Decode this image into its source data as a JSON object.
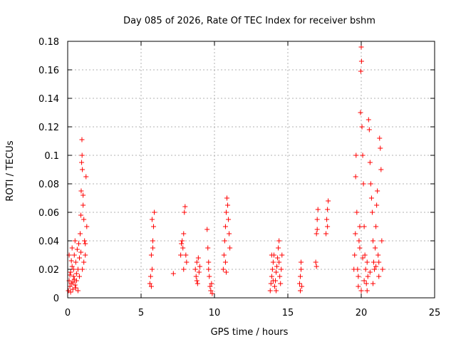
{
  "chart_data": {
    "type": "scatter",
    "title": "Day 085 of 2026, Rate Of TEC Index for receiver bshm",
    "xlabel": "GPS time / hours",
    "ylabel": "ROTI / TECUs",
    "xlim": [
      0,
      25
    ],
    "ylim": [
      0,
      0.18
    ],
    "x_ticks": [
      "0",
      "5",
      "10",
      "15",
      "20",
      "25"
    ],
    "y_ticks": [
      "0",
      "0.02",
      "0.04",
      "0.06",
      "0.08",
      "0.1",
      "0.12",
      "0.14",
      "0.16",
      "0.18"
    ],
    "grid": true,
    "marker": "+",
    "color": "#ff0000",
    "series": [
      {
        "points": [
          [
            0.05,
            0.005
          ],
          [
            0.1,
            0.012
          ],
          [
            0.15,
            0.008
          ],
          [
            0.2,
            0.018
          ],
          [
            0.25,
            0.01
          ],
          [
            0.3,
            0.022
          ],
          [
            0.35,
            0.006
          ],
          [
            0.4,
            0.015
          ],
          [
            0.45,
            0.03
          ],
          [
            0.5,
            0.009
          ],
          [
            0.55,
            0.025
          ],
          [
            0.6,
            0.012
          ],
          [
            0.65,
            0.034
          ],
          [
            0.7,
            0.02
          ],
          [
            0.75,
            0.038
          ],
          [
            0.8,
            0.028
          ],
          [
            0.85,
            0.045
          ],
          [
            0.9,
            0.058
          ],
          [
            0.92,
            0.075
          ],
          [
            0.95,
            0.095
          ],
          [
            0.97,
            0.111
          ],
          [
            1.0,
            0.09
          ],
          [
            1.05,
            0.072
          ],
          [
            1.1,
            0.055
          ],
          [
            1.15,
            0.04
          ],
          [
            1.2,
            0.03
          ],
          [
            1.25,
            0.085
          ],
          [
            1.3,
            0.05
          ],
          [
            0.1,
            0.03
          ],
          [
            0.3,
            0.035
          ],
          [
            0.5,
            0.04
          ],
          [
            0.7,
            0.005
          ],
          [
            0.2,
            0.004
          ],
          [
            0.4,
            0.02
          ],
          [
            0.6,
            0.017
          ],
          [
            0.8,
            0.015
          ],
          [
            1.0,
            0.02
          ],
          [
            1.1,
            0.025
          ],
          [
            1.2,
            0.038
          ],
          [
            0.15,
            0.016
          ],
          [
            0.35,
            0.011
          ],
          [
            0.55,
            0.007
          ],
          [
            0.25,
            0.026
          ],
          [
            0.45,
            0.013
          ],
          [
            0.9,
            0.032
          ],
          [
            1.05,
            0.065
          ],
          [
            0.98,
            0.1
          ],
          [
            5.6,
            0.01
          ],
          [
            5.65,
            0.015
          ],
          [
            5.7,
            0.008
          ],
          [
            5.75,
            0.02
          ],
          [
            5.7,
            0.03
          ],
          [
            5.8,
            0.04
          ],
          [
            5.85,
            0.05
          ],
          [
            5.9,
            0.06
          ],
          [
            5.75,
            0.055
          ],
          [
            5.8,
            0.035
          ],
          [
            7.2,
            0.017
          ],
          [
            7.7,
            0.03
          ],
          [
            7.8,
            0.04
          ],
          [
            7.85,
            0.035
          ],
          [
            7.9,
            0.045
          ],
          [
            7.95,
            0.06
          ],
          [
            8.0,
            0.064
          ],
          [
            8.05,
            0.03
          ],
          [
            8.1,
            0.025
          ],
          [
            7.75,
            0.038
          ],
          [
            7.9,
            0.02
          ],
          [
            8.7,
            0.02
          ],
          [
            8.75,
            0.015
          ],
          [
            8.8,
            0.025
          ],
          [
            8.85,
            0.01
          ],
          [
            8.9,
            0.028
          ],
          [
            8.95,
            0.018
          ],
          [
            9.0,
            0.022
          ],
          [
            8.8,
            0.012
          ],
          [
            9.5,
            0.048
          ],
          [
            9.55,
            0.035
          ],
          [
            9.6,
            0.025
          ],
          [
            9.65,
            0.015
          ],
          [
            9.7,
            0.008
          ],
          [
            9.75,
            0.005
          ],
          [
            9.8,
            0.01
          ],
          [
            9.85,
            0.003
          ],
          [
            9.6,
            0.02
          ],
          [
            10.6,
            0.02
          ],
          [
            10.65,
            0.03
          ],
          [
            10.7,
            0.04
          ],
          [
            10.75,
            0.05
          ],
          [
            10.8,
            0.06
          ],
          [
            10.85,
            0.07
          ],
          [
            10.9,
            0.065
          ],
          [
            10.95,
            0.055
          ],
          [
            11.0,
            0.045
          ],
          [
            11.05,
            0.035
          ],
          [
            10.75,
            0.025
          ],
          [
            10.8,
            0.018
          ],
          [
            13.8,
            0.005
          ],
          [
            13.85,
            0.01
          ],
          [
            13.9,
            0.015
          ],
          [
            13.95,
            0.02
          ],
          [
            14.0,
            0.025
          ],
          [
            14.05,
            0.03
          ],
          [
            14.1,
            0.008
          ],
          [
            14.15,
            0.012
          ],
          [
            14.2,
            0.018
          ],
          [
            14.25,
            0.022
          ],
          [
            14.3,
            0.028
          ],
          [
            14.35,
            0.035
          ],
          [
            14.4,
            0.04
          ],
          [
            14.45,
            0.015
          ],
          [
            14.5,
            0.01
          ],
          [
            14.55,
            0.02
          ],
          [
            14.6,
            0.03
          ],
          [
            14.0,
            0.012
          ],
          [
            14.2,
            0.005
          ],
          [
            14.4,
            0.025
          ],
          [
            13.9,
            0.03
          ],
          [
            15.8,
            0.01
          ],
          [
            15.85,
            0.015
          ],
          [
            15.9,
            0.02
          ],
          [
            15.95,
            0.008
          ],
          [
            15.85,
            0.005
          ],
          [
            15.9,
            0.025
          ],
          [
            16.9,
            0.025
          ],
          [
            16.95,
            0.045
          ],
          [
            17.0,
            0.055
          ],
          [
            17.05,
            0.062
          ],
          [
            16.95,
            0.022
          ],
          [
            17.0,
            0.048
          ],
          [
            17.6,
            0.045
          ],
          [
            17.65,
            0.055
          ],
          [
            17.7,
            0.062
          ],
          [
            17.75,
            0.068
          ],
          [
            17.7,
            0.05
          ],
          [
            19.5,
            0.02
          ],
          [
            19.55,
            0.03
          ],
          [
            19.6,
            0.045
          ],
          [
            19.62,
            0.085
          ],
          [
            19.65,
            0.1
          ],
          [
            19.7,
            0.06
          ],
          [
            19.75,
            0.02
          ],
          [
            19.8,
            0.015
          ],
          [
            19.85,
            0.04
          ],
          [
            19.9,
            0.05
          ],
          [
            19.95,
            0.13
          ],
          [
            19.97,
            0.159
          ],
          [
            20.0,
            0.176
          ],
          [
            20.02,
            0.166
          ],
          [
            20.05,
            0.12
          ],
          [
            20.1,
            0.1
          ],
          [
            20.15,
            0.08
          ],
          [
            20.2,
            0.05
          ],
          [
            20.25,
            0.03
          ],
          [
            20.3,
            0.02
          ],
          [
            20.35,
            0.01
          ],
          [
            20.4,
            0.005
          ],
          [
            20.45,
            0.015
          ],
          [
            20.5,
            0.125
          ],
          [
            20.55,
            0.118
          ],
          [
            20.6,
            0.095
          ],
          [
            20.65,
            0.08
          ],
          [
            20.7,
            0.07
          ],
          [
            20.75,
            0.06
          ],
          [
            20.8,
            0.04
          ],
          [
            20.85,
            0.025
          ],
          [
            20.9,
            0.02
          ],
          [
            20.95,
            0.035
          ],
          [
            21.0,
            0.05
          ],
          [
            21.05,
            0.065
          ],
          [
            21.1,
            0.075
          ],
          [
            21.15,
            0.03
          ],
          [
            21.2,
            0.025
          ],
          [
            21.25,
            0.112
          ],
          [
            21.3,
            0.105
          ],
          [
            21.35,
            0.09
          ],
          [
            21.4,
            0.04
          ],
          [
            21.45,
            0.02
          ],
          [
            19.8,
            0.008
          ],
          [
            20.0,
            0.005
          ],
          [
            20.2,
            0.012
          ],
          [
            20.4,
            0.025
          ],
          [
            20.6,
            0.018
          ],
          [
            20.8,
            0.01
          ],
          [
            21.0,
            0.022
          ],
          [
            21.2,
            0.015
          ],
          [
            19.9,
            0.035
          ],
          [
            20.1,
            0.028
          ]
        ]
      }
    ]
  }
}
